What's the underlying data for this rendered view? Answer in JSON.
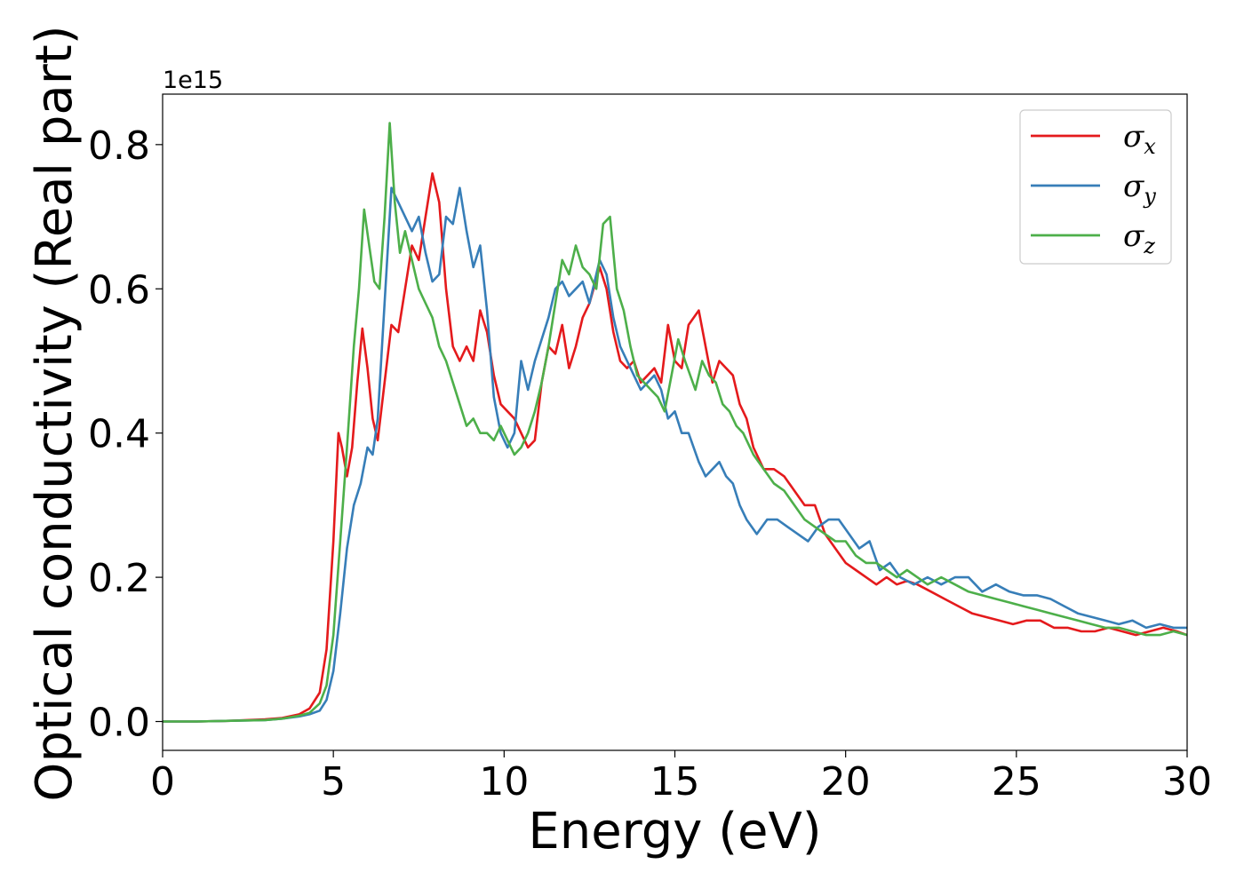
{
  "chart_data": {
    "type": "line",
    "xlabel": "Energy (eV)",
    "ylabel": "Optical conductivity (Real part)",
    "y_offset_label": "1e15",
    "xlim": [
      0,
      30
    ],
    "ylim": [
      -0.04,
      0.87
    ],
    "x_ticks": [
      0,
      5,
      10,
      15,
      20,
      25,
      30
    ],
    "y_ticks": [
      0.0,
      0.2,
      0.4,
      0.6,
      0.8
    ],
    "x_tick_labels": [
      "0",
      "5",
      "10",
      "15",
      "20",
      "25",
      "30"
    ],
    "y_tick_labels": [
      "0.0",
      "0.2",
      "0.4",
      "0.6",
      "0.8"
    ],
    "grid": false,
    "legend_position": "top-right",
    "series": [
      {
        "name": "σx",
        "symbol": "σ",
        "subscript": "x",
        "color": "#e41a1c",
        "x": [
          0,
          1,
          2,
          3,
          3.5,
          4,
          4.3,
          4.6,
          4.8,
          5.0,
          5.15,
          5.25,
          5.4,
          5.55,
          5.7,
          5.85,
          6.0,
          6.15,
          6.3,
          6.5,
          6.7,
          6.9,
          7.1,
          7.3,
          7.5,
          7.7,
          7.9,
          8.1,
          8.3,
          8.5,
          8.7,
          8.9,
          9.1,
          9.3,
          9.5,
          9.7,
          9.9,
          10.1,
          10.3,
          10.5,
          10.7,
          10.9,
          11.1,
          11.3,
          11.5,
          11.7,
          11.9,
          12.1,
          12.3,
          12.5,
          12.8,
          13.0,
          13.2,
          13.4,
          13.6,
          13.8,
          14.0,
          14.2,
          14.4,
          14.6,
          14.8,
          15.0,
          15.2,
          15.4,
          15.7,
          15.9,
          16.1,
          16.3,
          16.5,
          16.7,
          16.9,
          17.1,
          17.3,
          17.6,
          17.9,
          18.2,
          18.5,
          18.8,
          19.1,
          19.4,
          19.7,
          20.0,
          20.3,
          20.6,
          20.9,
          21.2,
          21.5,
          21.8,
          22.1,
          22.5,
          22.9,
          23.3,
          23.7,
          24.1,
          24.5,
          24.9,
          25.3,
          25.7,
          26.1,
          26.5,
          26.9,
          27.3,
          27.7,
          28.1,
          28.5,
          28.9,
          29.3,
          29.7,
          30.0
        ],
        "y": [
          0.0,
          0.0,
          0.001,
          0.003,
          0.005,
          0.01,
          0.018,
          0.04,
          0.1,
          0.25,
          0.4,
          0.38,
          0.34,
          0.38,
          0.47,
          0.545,
          0.49,
          0.42,
          0.39,
          0.47,
          0.55,
          0.54,
          0.6,
          0.66,
          0.64,
          0.7,
          0.76,
          0.72,
          0.6,
          0.52,
          0.5,
          0.52,
          0.5,
          0.57,
          0.54,
          0.48,
          0.44,
          0.43,
          0.42,
          0.4,
          0.38,
          0.39,
          0.47,
          0.52,
          0.51,
          0.55,
          0.49,
          0.52,
          0.56,
          0.58,
          0.63,
          0.6,
          0.54,
          0.5,
          0.49,
          0.5,
          0.47,
          0.48,
          0.49,
          0.47,
          0.55,
          0.5,
          0.49,
          0.55,
          0.57,
          0.52,
          0.47,
          0.5,
          0.49,
          0.48,
          0.44,
          0.42,
          0.38,
          0.35,
          0.35,
          0.34,
          0.32,
          0.3,
          0.3,
          0.26,
          0.24,
          0.22,
          0.21,
          0.2,
          0.19,
          0.2,
          0.19,
          0.195,
          0.19,
          0.18,
          0.17,
          0.16,
          0.15,
          0.145,
          0.14,
          0.135,
          0.14,
          0.14,
          0.13,
          0.13,
          0.125,
          0.125,
          0.13,
          0.125,
          0.12,
          0.125,
          0.13,
          0.125,
          0.12
        ]
      },
      {
        "name": "σy",
        "symbol": "σ",
        "subscript": "y",
        "color": "#377eb8",
        "x": [
          0,
          1,
          2,
          3,
          3.5,
          4,
          4.3,
          4.6,
          4.8,
          5.0,
          5.2,
          5.4,
          5.6,
          5.8,
          6.0,
          6.15,
          6.3,
          6.5,
          6.7,
          6.9,
          7.1,
          7.3,
          7.5,
          7.7,
          7.9,
          8.1,
          8.3,
          8.5,
          8.7,
          8.9,
          9.1,
          9.3,
          9.5,
          9.7,
          9.9,
          10.1,
          10.3,
          10.5,
          10.7,
          10.9,
          11.1,
          11.3,
          11.5,
          11.7,
          11.9,
          12.1,
          12.3,
          12.5,
          12.8,
          13.0,
          13.2,
          13.4,
          13.6,
          13.8,
          14.0,
          14.2,
          14.4,
          14.6,
          14.8,
          15.0,
          15.2,
          15.4,
          15.7,
          15.9,
          16.1,
          16.3,
          16.5,
          16.7,
          16.9,
          17.1,
          17.4,
          17.7,
          18.0,
          18.3,
          18.6,
          18.9,
          19.2,
          19.5,
          19.8,
          20.1,
          20.4,
          20.7,
          21.0,
          21.3,
          21.6,
          22.0,
          22.4,
          22.8,
          23.2,
          23.6,
          24.0,
          24.4,
          24.8,
          25.2,
          25.6,
          26.0,
          26.4,
          26.8,
          27.2,
          27.6,
          28.0,
          28.4,
          28.8,
          29.2,
          29.6,
          30.0
        ],
        "y": [
          0.0,
          0.0,
          0.001,
          0.002,
          0.004,
          0.007,
          0.01,
          0.015,
          0.03,
          0.07,
          0.15,
          0.24,
          0.3,
          0.33,
          0.38,
          0.37,
          0.42,
          0.58,
          0.74,
          0.72,
          0.7,
          0.68,
          0.7,
          0.65,
          0.61,
          0.62,
          0.7,
          0.69,
          0.74,
          0.68,
          0.63,
          0.66,
          0.57,
          0.45,
          0.4,
          0.38,
          0.4,
          0.5,
          0.46,
          0.5,
          0.53,
          0.56,
          0.6,
          0.61,
          0.59,
          0.6,
          0.61,
          0.58,
          0.64,
          0.62,
          0.56,
          0.52,
          0.5,
          0.48,
          0.46,
          0.47,
          0.48,
          0.46,
          0.42,
          0.43,
          0.4,
          0.4,
          0.36,
          0.34,
          0.35,
          0.36,
          0.34,
          0.33,
          0.3,
          0.28,
          0.26,
          0.28,
          0.28,
          0.27,
          0.26,
          0.25,
          0.27,
          0.28,
          0.28,
          0.26,
          0.24,
          0.25,
          0.21,
          0.22,
          0.2,
          0.19,
          0.2,
          0.19,
          0.2,
          0.2,
          0.18,
          0.19,
          0.18,
          0.175,
          0.175,
          0.17,
          0.16,
          0.15,
          0.145,
          0.14,
          0.135,
          0.14,
          0.13,
          0.135,
          0.13,
          0.13
        ]
      },
      {
        "name": "σz",
        "symbol": "σ",
        "subscript": "z",
        "color": "#4daf4a",
        "x": [
          0,
          1,
          2,
          3,
          3.5,
          4,
          4.3,
          4.6,
          4.8,
          5.0,
          5.2,
          5.4,
          5.6,
          5.75,
          5.9,
          6.05,
          6.2,
          6.35,
          6.5,
          6.65,
          6.8,
          6.95,
          7.1,
          7.3,
          7.5,
          7.7,
          7.9,
          8.1,
          8.3,
          8.5,
          8.7,
          8.9,
          9.1,
          9.3,
          9.5,
          9.7,
          9.9,
          10.1,
          10.3,
          10.5,
          10.7,
          10.9,
          11.1,
          11.3,
          11.5,
          11.7,
          11.9,
          12.1,
          12.3,
          12.5,
          12.7,
          12.9,
          13.1,
          13.3,
          13.5,
          13.7,
          13.9,
          14.1,
          14.3,
          14.5,
          14.7,
          14.9,
          15.1,
          15.3,
          15.6,
          15.8,
          16.0,
          16.2,
          16.4,
          16.6,
          16.8,
          17.0,
          17.3,
          17.6,
          17.9,
          18.2,
          18.5,
          18.8,
          19.1,
          19.4,
          19.7,
          20.0,
          20.3,
          20.6,
          20.9,
          21.2,
          21.5,
          21.8,
          22.1,
          22.4,
          22.8,
          23.2,
          23.6,
          24.0,
          24.4,
          24.8,
          25.2,
          25.6,
          26.0,
          26.4,
          26.8,
          27.2,
          27.6,
          28.0,
          28.4,
          28.8,
          29.2,
          29.6,
          30.0
        ],
        "y": [
          0.0,
          0.0,
          0.001,
          0.002,
          0.004,
          0.008,
          0.012,
          0.025,
          0.05,
          0.12,
          0.25,
          0.38,
          0.52,
          0.6,
          0.71,
          0.66,
          0.61,
          0.6,
          0.7,
          0.83,
          0.72,
          0.65,
          0.68,
          0.64,
          0.6,
          0.58,
          0.56,
          0.52,
          0.5,
          0.47,
          0.44,
          0.41,
          0.42,
          0.4,
          0.4,
          0.39,
          0.41,
          0.39,
          0.37,
          0.38,
          0.4,
          0.43,
          0.47,
          0.52,
          0.58,
          0.64,
          0.62,
          0.66,
          0.63,
          0.62,
          0.6,
          0.69,
          0.7,
          0.6,
          0.57,
          0.52,
          0.48,
          0.47,
          0.46,
          0.45,
          0.43,
          0.48,
          0.53,
          0.5,
          0.46,
          0.5,
          0.48,
          0.47,
          0.44,
          0.43,
          0.41,
          0.4,
          0.37,
          0.35,
          0.33,
          0.32,
          0.3,
          0.28,
          0.27,
          0.26,
          0.25,
          0.25,
          0.23,
          0.22,
          0.22,
          0.21,
          0.2,
          0.21,
          0.2,
          0.19,
          0.2,
          0.19,
          0.18,
          0.175,
          0.17,
          0.165,
          0.16,
          0.155,
          0.15,
          0.145,
          0.14,
          0.135,
          0.13,
          0.13,
          0.125,
          0.12,
          0.12,
          0.125,
          0.12
        ]
      }
    ]
  }
}
